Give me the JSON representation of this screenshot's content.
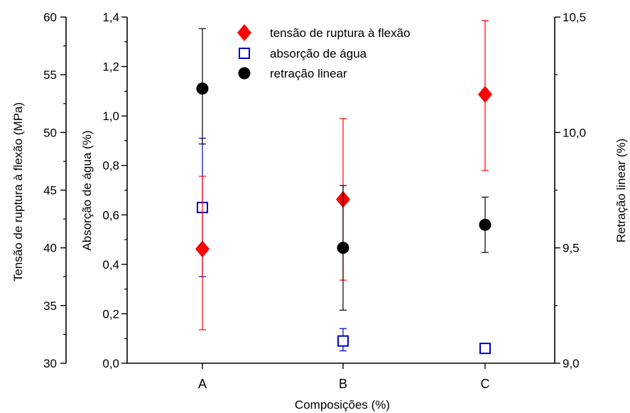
{
  "chart_data": {
    "type": "scatter",
    "categories": [
      "A",
      "B",
      "C"
    ],
    "xlabel": "Composições (%)",
    "axes": {
      "left_outer": {
        "label": "Tensão de ruptura à flexão (MPa)",
        "ylim": [
          30,
          60
        ],
        "ticks": [
          "30",
          "35",
          "40",
          "45",
          "50",
          "55",
          "60"
        ]
      },
      "left_inner": {
        "label": "Absorção de água (%)",
        "ylim": [
          0.0,
          1.4
        ],
        "ticks": [
          "0,0",
          "0,2",
          "0,4",
          "0,6",
          "0,8",
          "1,0",
          "1,2",
          "1,4"
        ]
      },
      "right": {
        "label": "Retração linear (%)",
        "ylim": [
          9.0,
          10.5
        ],
        "ticks": [
          "9,0",
          "9,5",
          "10,0",
          "10,5"
        ]
      }
    },
    "series": [
      {
        "name": "tensão de ruptura à flexão",
        "axis": "left_outer",
        "marker": "diamond",
        "color": "#ff0000",
        "values": [
          39.9,
          44.2,
          53.3
        ],
        "err_low": [
          32.9,
          37.2,
          46.7
        ],
        "err_high": [
          46.2,
          51.2,
          59.7
        ]
      },
      {
        "name": "absorção de água",
        "axis": "left_inner",
        "marker": "square-open",
        "color": "#0000cc",
        "values": [
          0.63,
          0.09,
          0.06
        ],
        "err_low": [
          0.35,
          0.05,
          0.05
        ],
        "err_high": [
          0.91,
          0.14,
          0.07
        ]
      },
      {
        "name": "retração linear",
        "axis": "right",
        "marker": "circle",
        "color": "#000000",
        "values": [
          10.19,
          9.5,
          9.6
        ],
        "err_low": [
          9.95,
          9.23,
          9.48
        ],
        "err_high": [
          10.45,
          9.77,
          9.72
        ]
      }
    ],
    "legend_position": "top-center",
    "grid": false
  }
}
